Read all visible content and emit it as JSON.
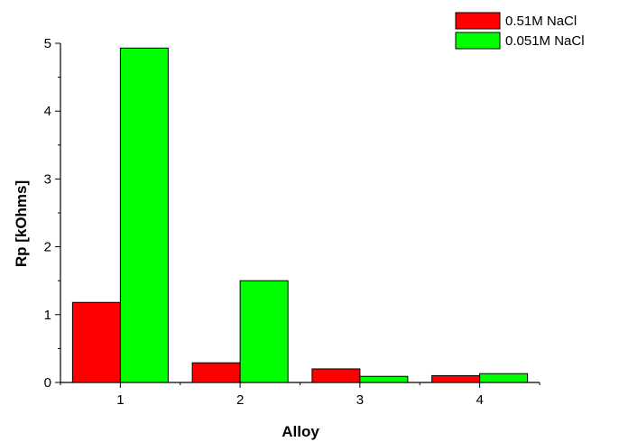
{
  "chart_data": {
    "type": "bar",
    "xlabel": "Alloy",
    "ylabel": "Rp [kOhms]",
    "categories": [
      "1",
      "2",
      "3",
      "4"
    ],
    "ylim": [
      0,
      5
    ],
    "yticks": [
      "0",
      "1",
      "2",
      "3",
      "4",
      "5"
    ],
    "series": [
      {
        "name": "0.51M NaCl",
        "color": "#ff0000",
        "values": [
          1.18,
          0.29,
          0.2,
          0.1
        ]
      },
      {
        "name": "0.051M NaCl",
        "color": "#00ff00",
        "values": [
          4.93,
          1.5,
          0.09,
          0.13
        ]
      }
    ],
    "legend": "top-right",
    "grid": false
  }
}
